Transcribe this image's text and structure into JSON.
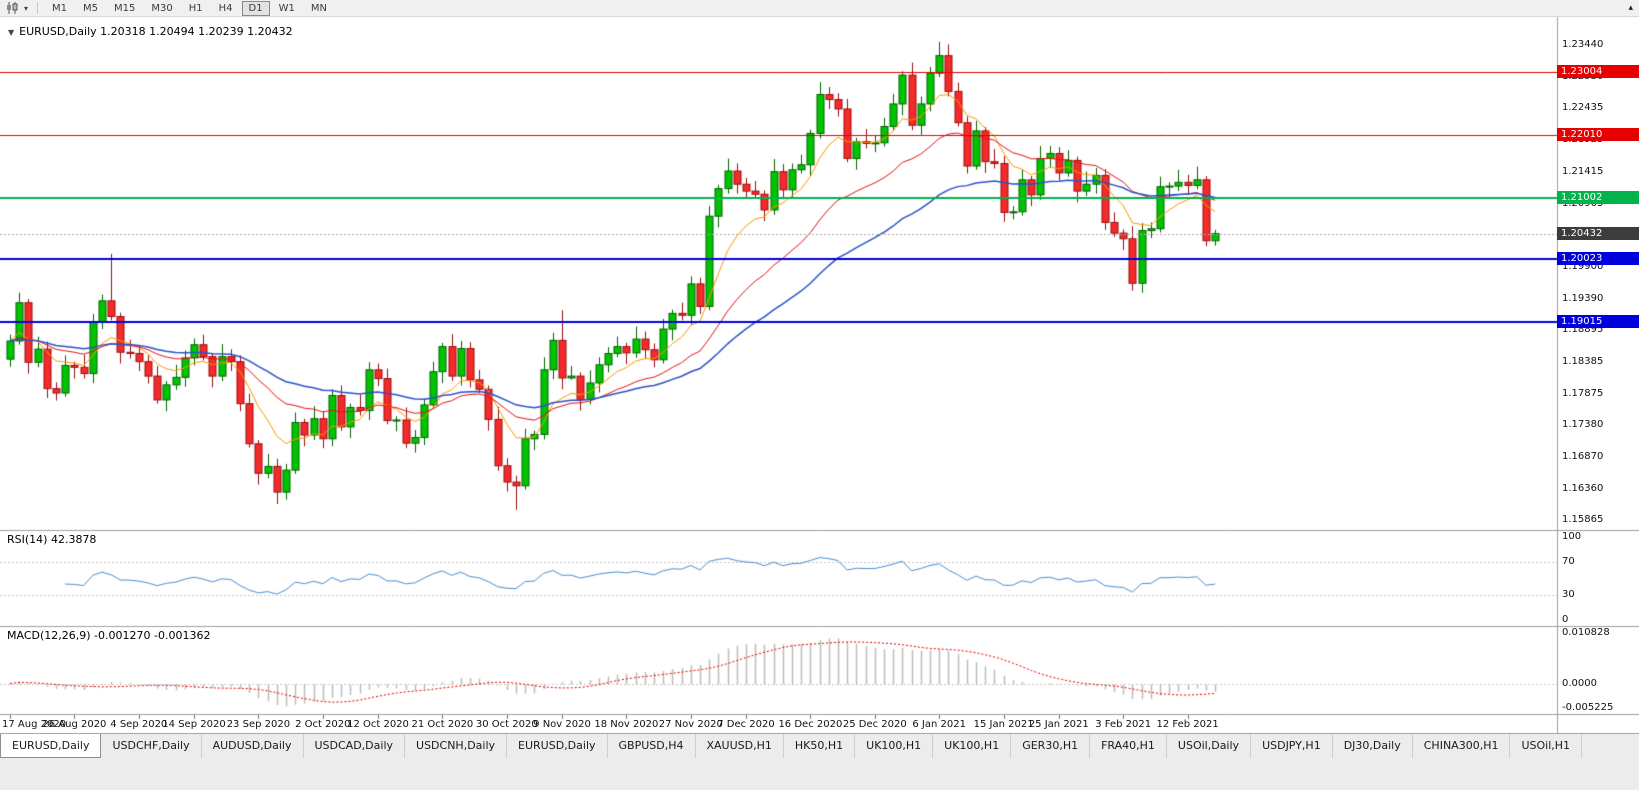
{
  "toolbar": {
    "timeframes": [
      "M1",
      "M5",
      "M15",
      "M30",
      "H1",
      "H4",
      "D1",
      "W1",
      "MN"
    ],
    "active_timeframe": "D1"
  },
  "chart": {
    "title": "EURUSD,Daily  1.20318 1.20494 1.20239 1.20432",
    "price_axis_labels": [
      "1.23440",
      "1.22930",
      "1.22435",
      "1.21925",
      "1.21415",
      "1.20905",
      "1.20395",
      "1.19900",
      "1.19390",
      "1.18895",
      "1.18385",
      "1.17875",
      "1.17380",
      "1.16870",
      "1.16360",
      "1.15865"
    ],
    "horizontal_lines": [
      {
        "price": 1.23004,
        "label": "1.23004",
        "color": "#e60000",
        "width": 1
      },
      {
        "price": 1.2201,
        "label": "1.22010",
        "color": "#e60000",
        "width": 1
      },
      {
        "price": 1.21002,
        "label": "1.21002",
        "color": "#00b44b",
        "width": 2
      },
      {
        "price": 1.20023,
        "label": "1.20023",
        "color": "#0000dc",
        "width": 2
      },
      {
        "price": 1.19015,
        "label": "1.19015",
        "color": "#0000dc",
        "width": 2
      }
    ],
    "bid_line": {
      "price": 1.20432,
      "label": "1.20432",
      "line_color": "#ababab",
      "box_color": "#3c3c3c"
    }
  },
  "chart_data": {
    "type": "candlestick",
    "symbol": "EURUSD",
    "period": "Daily",
    "up_color": "#00c400",
    "up_border": "#006400",
    "down_color": "#f42b2b",
    "down_border": "#9c0f0f",
    "moving_averages": [
      {
        "type": "EMA",
        "period": 8,
        "color": "#ff9800"
      },
      {
        "type": "EMA",
        "period": 21,
        "color": "#e81212"
      },
      {
        "type": "EMA",
        "period": 40,
        "color": "#2d52c8"
      }
    ],
    "open": [
      1.1843,
      1.1872,
      1.1933,
      1.1838,
      1.1859,
      1.1796,
      1.1789,
      1.1833,
      1.183,
      1.182,
      1.1903,
      1.1936,
      1.1911,
      1.1854,
      1.1852,
      1.1839,
      1.1816,
      1.1778,
      1.1802,
      1.1814,
      1.1845,
      1.1866,
      1.1847,
      1.1816,
      1.1847,
      1.1839,
      1.1772,
      1.1708,
      1.1661,
      1.1672,
      1.1631,
      1.1666,
      1.1742,
      1.1722,
      1.1748,
      1.1716,
      1.1785,
      1.1735,
      1.1766,
      1.1761,
      1.1826,
      1.1812,
      1.1745,
      1.1746,
      1.1709,
      1.1718,
      1.177,
      1.1823,
      1.1863,
      1.1816,
      1.186,
      1.181,
      1.1795,
      1.1747,
      1.1673,
      1.1647,
      1.1641,
      1.1716,
      1.1723,
      1.1826,
      1.1873,
      1.1813,
      1.1816,
      1.1779,
      1.1805,
      1.1834,
      1.1852,
      1.1863,
      1.1853,
      1.1875,
      1.1858,
      1.1842,
      1.1891,
      1.1916,
      1.1913,
      1.1963,
      1.1927,
      1.2071,
      1.2115,
      1.2143,
      1.2122,
      1.2111,
      1.2106,
      1.2081,
      1.2142,
      1.2113,
      1.2145,
      1.2153,
      1.2203,
      1.2265,
      1.2257,
      1.2242,
      1.2163,
      1.219,
      1.2187,
      1.2188,
      1.2214,
      1.225,
      1.2296,
      1.2216,
      1.225,
      1.2299,
      1.2327,
      1.227,
      1.222,
      1.2151,
      1.2207,
      1.2158,
      1.2155,
      1.2077,
      1.2078,
      1.2129,
      1.2105,
      1.2163,
      1.2171,
      1.214,
      1.216,
      1.2111,
      1.2122,
      1.2136,
      1.2061,
      1.2044,
      1.2035,
      1.1964,
      1.2048,
      1.2051,
      1.2118,
      1.2119,
      1.2125,
      1.212,
      1.2129,
      1.20318
    ],
    "high": [
      1.1882,
      1.1949,
      1.1939,
      1.1879,
      1.1871,
      1.1806,
      1.1849,
      1.1839,
      1.185,
      1.1915,
      1.1946,
      1.2011,
      1.1917,
      1.1874,
      1.1864,
      1.1849,
      1.1832,
      1.1808,
      1.1834,
      1.1857,
      1.1876,
      1.1882,
      1.1853,
      1.1867,
      1.1859,
      1.1849,
      1.1788,
      1.1714,
      1.1692,
      1.1684,
      1.1676,
      1.1758,
      1.1748,
      1.1768,
      1.176,
      1.1795,
      1.1801,
      1.1772,
      1.1786,
      1.1838,
      1.1836,
      1.1828,
      1.1752,
      1.1766,
      1.173,
      1.178,
      1.1839,
      1.1869,
      1.1883,
      1.1872,
      1.187,
      1.1826,
      1.1801,
      1.1767,
      1.1685,
      1.1657,
      1.1732,
      1.1729,
      1.1846,
      1.1885,
      1.1921,
      1.1832,
      1.1822,
      1.1825,
      1.1846,
      1.1862,
      1.1879,
      1.1869,
      1.1895,
      1.1887,
      1.1868,
      1.1907,
      1.1922,
      1.1933,
      1.1975,
      1.1973,
      1.2087,
      1.2121,
      1.2163,
      1.2155,
      1.2132,
      1.2127,
      1.2112,
      1.2162,
      1.2154,
      1.2155,
      1.2169,
      1.2209,
      1.2285,
      1.2277,
      1.2267,
      1.2258,
      1.2196,
      1.221,
      1.22,
      1.2228,
      1.2266,
      1.2302,
      1.2316,
      1.2262,
      1.2309,
      1.2349,
      1.2345,
      1.2284,
      1.223,
      1.2223,
      1.2213,
      1.2178,
      1.2167,
      1.2087,
      1.2145,
      1.2135,
      1.2183,
      1.2183,
      1.2181,
      1.2176,
      1.2166,
      1.2142,
      1.2148,
      1.2146,
      1.2077,
      1.205,
      1.2055,
      1.206,
      1.2061,
      1.2134,
      1.2125,
      1.2145,
      1.2137,
      1.215,
      1.2135,
      1.20494
    ],
    "low": [
      1.1831,
      1.1866,
      1.182,
      1.183,
      1.1781,
      1.1777,
      1.1783,
      1.1812,
      1.1812,
      1.1805,
      1.1891,
      1.1905,
      1.1836,
      1.1844,
      1.1824,
      1.1804,
      1.1772,
      1.176,
      1.1794,
      1.1799,
      1.1833,
      1.1841,
      1.1798,
      1.1808,
      1.1824,
      1.176,
      1.1702,
      1.1643,
      1.1653,
      1.1612,
      1.1619,
      1.166,
      1.1704,
      1.1714,
      1.1701,
      1.1704,
      1.1729,
      1.1717,
      1.1753,
      1.1746,
      1.18,
      1.1739,
      1.1728,
      1.1701,
      1.1694,
      1.1706,
      1.1764,
      1.1805,
      1.1808,
      1.1801,
      1.1798,
      1.1789,
      1.1729,
      1.1665,
      1.1632,
      1.1603,
      1.1635,
      1.1698,
      1.1715,
      1.1811,
      1.1795,
      1.181,
      1.1761,
      1.1771,
      1.179,
      1.1822,
      1.1846,
      1.1835,
      1.1845,
      1.1843,
      1.183,
      1.1836,
      1.1873,
      1.1905,
      1.1898,
      1.1915,
      1.1921,
      1.2053,
      1.2107,
      1.2107,
      1.2099,
      1.21,
      1.2063,
      1.2073,
      1.2098,
      1.2101,
      1.2139,
      1.2135,
      1.2195,
      1.2242,
      1.223,
      1.2157,
      1.2145,
      1.2179,
      1.2173,
      1.2182,
      1.2208,
      1.2232,
      1.2208,
      1.2201,
      1.2238,
      1.2293,
      1.2262,
      1.2214,
      1.2139,
      1.2145,
      1.214,
      1.2147,
      1.2062,
      1.2066,
      1.2072,
      1.2087,
      1.2097,
      1.2148,
      1.2128,
      1.2134,
      1.2093,
      1.2103,
      1.2107,
      1.2049,
      1.2038,
      1.2017,
      1.1952,
      1.1949,
      1.2036,
      1.2045,
      1.21,
      1.2111,
      1.2105,
      1.2114,
      1.2023,
      1.20239
    ],
    "close": [
      1.1872,
      1.1933,
      1.1838,
      1.1859,
      1.1796,
      1.1789,
      1.1833,
      1.183,
      1.182,
      1.1903,
      1.1936,
      1.1911,
      1.1854,
      1.1852,
      1.1839,
      1.1816,
      1.1778,
      1.1802,
      1.1814,
      1.1845,
      1.1866,
      1.1847,
      1.1816,
      1.1847,
      1.1839,
      1.1772,
      1.1708,
      1.1661,
      1.1672,
      1.1631,
      1.1666,
      1.1742,
      1.1722,
      1.1748,
      1.1716,
      1.1785,
      1.1735,
      1.1766,
      1.1761,
      1.1826,
      1.1812,
      1.1745,
      1.1746,
      1.1709,
      1.1718,
      1.177,
      1.1823,
      1.1863,
      1.1816,
      1.186,
      1.181,
      1.1795,
      1.1747,
      1.1673,
      1.1647,
      1.1641,
      1.1716,
      1.1723,
      1.1826,
      1.1873,
      1.1813,
      1.1816,
      1.1779,
      1.1805,
      1.1834,
      1.1852,
      1.1863,
      1.1853,
      1.1875,
      1.1858,
      1.1842,
      1.1891,
      1.1916,
      1.1913,
      1.1963,
      1.1927,
      1.2071,
      1.2115,
      1.2143,
      1.2122,
      1.2111,
      1.2106,
      1.2081,
      1.2142,
      1.2113,
      1.2145,
      1.2153,
      1.2203,
      1.2265,
      1.2257,
      1.2242,
      1.2163,
      1.219,
      1.2187,
      1.2188,
      1.2214,
      1.225,
      1.2296,
      1.2216,
      1.225,
      1.2299,
      1.2327,
      1.227,
      1.222,
      1.2151,
      1.2207,
      1.2158,
      1.2155,
      1.2077,
      1.2078,
      1.2129,
      1.2105,
      1.2163,
      1.2171,
      1.214,
      1.216,
      1.2111,
      1.2122,
      1.2136,
      1.2061,
      1.2044,
      1.2035,
      1.1964,
      1.2048,
      1.2051,
      1.2118,
      1.2119,
      1.2125,
      1.212,
      1.2129,
      1.20318,
      1.20432
    ],
    "date_ticks": [
      {
        "label": "17 Aug 2020",
        "bar": 0
      },
      {
        "label": "26 Aug 2020",
        "bar": 7
      },
      {
        "label": "4 Sep 2020",
        "bar": 14
      },
      {
        "label": "14 Sep 2020",
        "bar": 20
      },
      {
        "label": "23 Sep 2020",
        "bar": 27
      },
      {
        "label": "2 Oct 2020",
        "bar": 34
      },
      {
        "label": "12 Oct 2020",
        "bar": 40
      },
      {
        "label": "21 Oct 2020",
        "bar": 47
      },
      {
        "label": "30 Oct 2020",
        "bar": 54
      },
      {
        "label": "9 Nov 2020",
        "bar": 60
      },
      {
        "label": "18 Nov 2020",
        "bar": 67
      },
      {
        "label": "27 Nov 2020",
        "bar": 74
      },
      {
        "label": "7 Dec 2020",
        "bar": 80
      },
      {
        "label": "16 Dec 2020",
        "bar": 87
      },
      {
        "label": "25 Dec 2020",
        "bar": 94
      },
      {
        "label": "6 Jan 2021",
        "bar": 101
      },
      {
        "label": "15 Jan 2021",
        "bar": 108
      },
      {
        "label": "25 Jan 2021",
        "bar": 114
      },
      {
        "label": "3 Feb 2021",
        "bar": 121
      },
      {
        "label": "12 Feb 2021",
        "bar": 128
      }
    ]
  },
  "rsi": {
    "header": "RSI(14) 42.3878",
    "period": 14,
    "value": "42.3878",
    "color": "#4a8fd4",
    "levels": [
      70,
      30
    ],
    "axis_labels": [
      {
        "label": "100",
        "value": 100
      },
      {
        "label": "70",
        "value": 70
      },
      {
        "label": "30",
        "value": 30
      },
      {
        "label": "0",
        "value": 0
      }
    ]
  },
  "macd": {
    "header": "MACD(12,26,9) -0.001270 -0.001362",
    "fast": 12,
    "slow": 26,
    "signal": 9,
    "main_value": "-0.001270",
    "signal_value": "-0.001362",
    "histogram_color": "#bcbcbc",
    "signal_color": "#e60000",
    "axis_labels": [
      {
        "label": "0.010828",
        "value": 0.010828
      },
      {
        "label": "0.0000",
        "value": 0
      },
      {
        "label": "-0.005225",
        "value": -0.005225
      }
    ]
  },
  "tabs": {
    "items": [
      {
        "label": "EURUSD,Daily",
        "active": true
      },
      {
        "label": "USDCHF,Daily",
        "active": false
      },
      {
        "label": "AUDUSD,Daily",
        "active": false
      },
      {
        "label": "USDCAD,Daily",
        "active": false
      },
      {
        "label": "USDCNH,Daily",
        "active": false
      },
      {
        "label": "EURUSD,Daily",
        "active": false
      },
      {
        "label": "GBPUSD,H4",
        "active": false
      },
      {
        "label": "XAUUSD,H1",
        "active": false
      },
      {
        "label": "HK50,H1",
        "active": false
      },
      {
        "label": "UK100,H1",
        "active": false
      },
      {
        "label": "UK100,H1",
        "active": false
      },
      {
        "label": "GER30,H1",
        "active": false
      },
      {
        "label": "FRA40,H1",
        "active": false
      },
      {
        "label": "USOil,Daily",
        "active": false
      },
      {
        "label": "USDJPY,H1",
        "active": false
      },
      {
        "label": "DJ30,Daily",
        "active": false
      },
      {
        "label": "CHINA300,H1",
        "active": false
      },
      {
        "label": "USOil,H1",
        "active": false
      }
    ]
  }
}
